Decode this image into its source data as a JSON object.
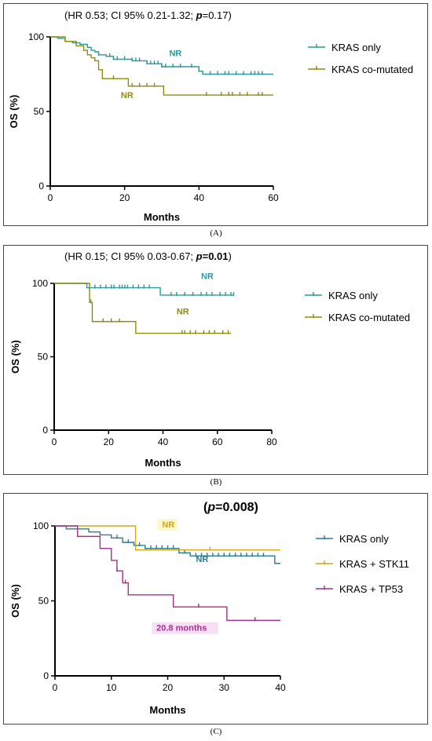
{
  "chart_data": [
    {
      "panel": "(A)",
      "type": "line",
      "subtype": "kaplan-meier",
      "title_parts": {
        "prefix": "(HR 0.53; CI 95% 0.21-1.32; ",
        "p_label": "p",
        "p_value": "=0.17",
        "suffix": ")"
      },
      "p_bold": false,
      "xlabel": "Months",
      "ylabel": "OS (%)",
      "xlim": [
        0,
        60
      ],
      "ylim": [
        0,
        100
      ],
      "xticks": [
        0,
        20,
        40,
        60
      ],
      "yticks": [
        0,
        50,
        100
      ],
      "legend_position": "right",
      "series": [
        {
          "name": "KRAS only",
          "color": "#2a9a9c",
          "steps": [
            [
              0,
              100
            ],
            [
              2,
              99
            ],
            [
              4,
              97
            ],
            [
              6,
              96
            ],
            [
              8,
              95
            ],
            [
              10,
              93
            ],
            [
              11,
              91
            ],
            [
              12,
              90
            ],
            [
              13,
              88
            ],
            [
              15,
              87
            ],
            [
              17,
              85
            ],
            [
              20,
              85
            ],
            [
              22,
              84
            ],
            [
              26,
              82
            ],
            [
              30,
              80
            ],
            [
              39,
              80
            ],
            [
              40,
              77
            ],
            [
              41,
              75
            ],
            [
              60,
              75
            ]
          ],
          "censor": [
            13,
            16,
            17,
            18,
            20,
            22,
            23,
            24,
            26,
            27,
            28,
            29,
            30,
            31,
            33,
            35,
            38,
            40,
            43,
            45,
            47,
            48,
            50,
            52,
            54,
            55,
            56,
            57
          ],
          "annotation": {
            "text": "NR",
            "x": 32,
            "y": 87
          }
        },
        {
          "name": "KRAS co-mutated",
          "color": "#8f8a12",
          "steps": [
            [
              0,
              100
            ],
            [
              4,
              97
            ],
            [
              7,
              94
            ],
            [
              9,
              91
            ],
            [
              10,
              88
            ],
            [
              11,
              86
            ],
            [
              12,
              84
            ],
            [
              13,
              78
            ],
            [
              14,
              72
            ],
            [
              20,
              72
            ],
            [
              21,
              67
            ],
            [
              30,
              67
            ],
            [
              30.5,
              61
            ],
            [
              60,
              61
            ]
          ],
          "censor": [
            17,
            22,
            24,
            26,
            28,
            42,
            46,
            48,
            49,
            51,
            53,
            56,
            57
          ],
          "annotation": {
            "text": "NR",
            "x": 19,
            "y": 59
          }
        }
      ]
    },
    {
      "panel": "(B)",
      "type": "line",
      "subtype": "kaplan-meier",
      "title_parts": {
        "prefix": "(HR 0.15; CI 95% 0.03-0.67; ",
        "p_label": "p",
        "p_value": "=0.01",
        "suffix": ")"
      },
      "p_bold": true,
      "xlabel": "Months",
      "ylabel": "OS (%)",
      "xlim": [
        0,
        80
      ],
      "ylim": [
        0,
        100
      ],
      "xticks": [
        0,
        20,
        40,
        60,
        80
      ],
      "yticks": [
        0,
        50,
        100
      ],
      "legend_position": "right",
      "series": [
        {
          "name": "KRAS only",
          "color": "#2a9a9c",
          "steps": [
            [
              0,
              100
            ],
            [
              10,
              100
            ],
            [
              12,
              97
            ],
            [
              38,
              97
            ],
            [
              39,
              92
            ],
            [
              66,
              92
            ]
          ],
          "censor": [
            15,
            17,
            19,
            21,
            22,
            24,
            25,
            26,
            27,
            29,
            31,
            33,
            35,
            43,
            45,
            48,
            51,
            54,
            56,
            58,
            61,
            63,
            65,
            66
          ],
          "annotation": {
            "text": "NR",
            "x": 54,
            "y": 103
          }
        },
        {
          "name": "KRAS co-mutated",
          "color": "#8f8a12",
          "steps": [
            [
              0,
              100
            ],
            [
              12,
              100
            ],
            [
              13,
              87
            ],
            [
              14,
              74
            ],
            [
              29,
              74
            ],
            [
              30,
              66
            ],
            [
              65,
              66
            ]
          ],
          "censor": [
            13.5,
            18,
            21,
            24,
            47,
            48,
            50,
            52,
            55,
            57,
            59,
            62,
            64
          ],
          "annotation": {
            "text": "NR",
            "x": 45,
            "y": 79
          }
        }
      ]
    },
    {
      "panel": "(C)",
      "type": "line",
      "subtype": "kaplan-meier",
      "title_parts": {
        "prefix": "(",
        "p_label": "p",
        "p_value": "=0.008",
        "suffix": ")"
      },
      "p_bold": true,
      "xlabel": "Months",
      "ylabel": "OS (%)",
      "xlim": [
        0,
        40
      ],
      "ylim": [
        0,
        100
      ],
      "xticks": [
        0,
        10,
        20,
        30,
        40
      ],
      "yticks": [
        0,
        50,
        100
      ],
      "legend_position": "right",
      "series": [
        {
          "name": "KRAS only",
          "color": "#2a7c96",
          "steps": [
            [
              0,
              100
            ],
            [
              2,
              98
            ],
            [
              6,
              96
            ],
            [
              8,
              94
            ],
            [
              10,
              92
            ],
            [
              12,
              89
            ],
            [
              14,
              87
            ],
            [
              16,
              85
            ],
            [
              21,
              85
            ],
            [
              22,
              82
            ],
            [
              24,
              80
            ],
            [
              38,
              80
            ],
            [
              39,
              75
            ],
            [
              40,
              75
            ]
          ],
          "censor": [
            11,
            13,
            15,
            16,
            17,
            18,
            19,
            20,
            21,
            23,
            25,
            26,
            27,
            28,
            29,
            30,
            31,
            32,
            33,
            34,
            35,
            36,
            37
          ],
          "annotation": {
            "text": "NR",
            "x": 25,
            "y": 76
          }
        },
        {
          "name": "KRAS + STK11",
          "color": "#d4a517",
          "steps": [
            [
              0,
              100
            ],
            [
              14,
              100
            ],
            [
              14.3,
              84
            ],
            [
              40,
              84
            ]
          ],
          "censor": [
            27.5
          ],
          "annotation": {
            "text": "NR",
            "x": 19,
            "y": 99
          },
          "annotation_highlight": "#fdf6c7"
        },
        {
          "name": "KRAS + TP53",
          "color": "#a3308e",
          "steps": [
            [
              0,
              100
            ],
            [
              4,
              93
            ],
            [
              8,
              85
            ],
            [
              10,
              77
            ],
            [
              11,
              70
            ],
            [
              12,
              62
            ],
            [
              13,
              54
            ],
            [
              19,
              54
            ],
            [
              21,
              46
            ],
            [
              30,
              46
            ],
            [
              30.5,
              37
            ],
            [
              40,
              37
            ]
          ],
          "censor": [
            11,
            12.5,
            25.5,
            35.5
          ],
          "annotation": {
            "text": "20.8 months",
            "x": 18,
            "y": 30
          },
          "annotation_highlight": "#f8dff3"
        }
      ]
    }
  ]
}
